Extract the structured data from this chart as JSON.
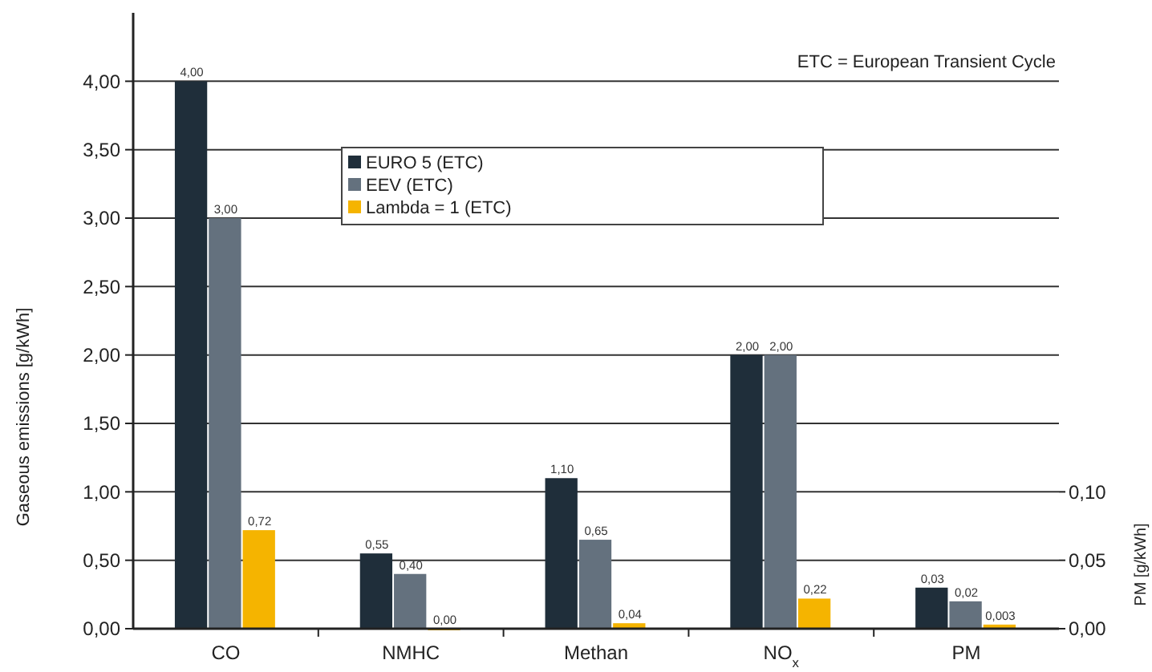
{
  "chart_data": {
    "type": "bar",
    "categories": [
      "CO",
      "NMHC",
      "Methan",
      "NO$_{x}$",
      "PM"
    ],
    "ylabel": "Gaseous emissions [g/kWh]",
    "y2label": "PM [g/kWh]",
    "ylim": [
      0,
      4.5
    ],
    "yticks": [
      {
        "value": 0,
        "label": "0,00"
      },
      {
        "value": 0.5,
        "label": "0,50"
      },
      {
        "value": 1,
        "label": "1,00"
      },
      {
        "value": 1.5,
        "label": "1,50"
      },
      {
        "value": 2,
        "label": "2,00"
      },
      {
        "value": 2.5,
        "label": "2,50"
      },
      {
        "value": 3,
        "label": "3,00"
      },
      {
        "value": 3.5,
        "label": "3,50"
      },
      {
        "value": 4,
        "label": "4,00"
      }
    ],
    "y2lim": [
      0,
      0.45
    ],
    "y2ticks": [
      {
        "value": 0,
        "label": "0,00"
      },
      {
        "value": 0.05,
        "label": "0,05"
      },
      {
        "value": 0.1,
        "label": "0,10"
      }
    ],
    "grid": "y",
    "legend": "top",
    "annotations": [
      "ETC = European Transient Cycle"
    ],
    "series": [
      {
        "name": "EURO 5 (ETC)",
        "color": "#1f2e3a",
        "values": [
          4,
          0.55,
          1.1,
          2,
          null
        ],
        "value_labels": [
          "4,00",
          "0,55",
          "1,10",
          "2,00",
          null
        ]
      },
      {
        "name": "EEV (ETC)",
        "color": "#64717e",
        "values": [
          3,
          0.4,
          0.65,
          2,
          null
        ],
        "value_labels": [
          "3,00",
          "0,40",
          "0,65",
          "2,00",
          null
        ]
      },
      {
        "name": "Lambda = 1 (ETC)",
        "color": "#f5b400",
        "values": [
          0.72,
          0,
          0.04,
          0.22,
          null
        ],
        "value_labels": [
          "0,72",
          "0,00",
          "0,04",
          "0,22",
          null
        ]
      },
      {
        "color": "#1f2e3a",
        "axis": "y2",
        "x": [
          "PM"
        ],
        "values": [
          0.03
        ],
        "value_labels": [
          "0,03"
        ]
      },
      {
        "color": "#64717e",
        "axis": "y2",
        "x": [
          "PM"
        ],
        "values": [
          0.02
        ],
        "value_labels": [
          "0,02"
        ]
      },
      {
        "color": "#f5b400",
        "axis": "y2",
        "x": [
          "PM"
        ],
        "values": [
          0.003
        ],
        "value_labels": [
          "0,003"
        ]
      }
    ]
  }
}
